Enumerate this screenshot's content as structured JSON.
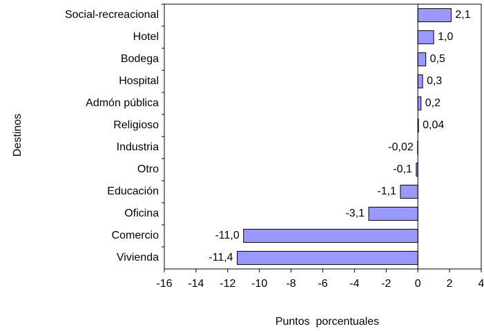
{
  "chart_data": {
    "type": "bar",
    "orientation": "horizontal",
    "categories": [
      "Social-recreacional",
      "Hotel",
      "Bodega",
      "Hospital",
      "Admón pública",
      "Religioso",
      "Industria",
      "Otro",
      "Educación",
      "Oficina",
      "Comercio",
      "Vivienda"
    ],
    "values": [
      2.1,
      1.0,
      0.5,
      0.3,
      0.2,
      0.04,
      -0.02,
      -0.1,
      -1.1,
      -3.1,
      -11.0,
      -11.4
    ],
    "value_labels": [
      "2,1",
      "1,0",
      "0,5",
      "0,3",
      "0,2",
      "0,04",
      "-0,02",
      "-0,1",
      "-1,1",
      "-3,1",
      "-11,0",
      "-11,4"
    ],
    "color": "#9999ff",
    "xlim": [
      -16,
      4
    ],
    "xticks": [
      -16,
      -14,
      -12,
      -10,
      -8,
      -6,
      -4,
      -2,
      0,
      2,
      4
    ],
    "xlabel": "Puntos  porcentuales",
    "ylabel": "Destinos",
    "grid": false
  }
}
